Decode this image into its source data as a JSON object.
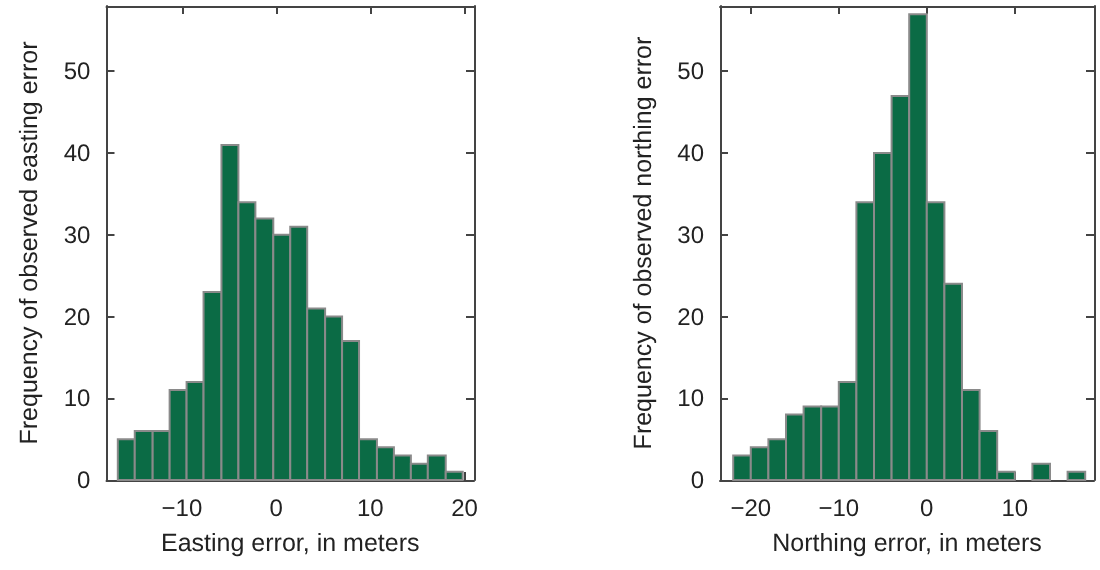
{
  "chart_data": [
    {
      "type": "histogram",
      "xlabel": "Easting error, in meters",
      "ylabel": "Frequency of observed easting error",
      "color": "#0b6b45",
      "bins": [
        -16.8,
        -15.0,
        -13.1,
        -11.3,
        -9.5,
        -7.7,
        -5.8,
        -4.0,
        -2.2,
        -0.3,
        1.5,
        3.3,
        5.2,
        7.0,
        8.8,
        10.7,
        12.5,
        14.3,
        16.1,
        18.0,
        19.8
      ],
      "values": [
        5,
        6,
        6,
        11,
        12,
        23,
        41,
        34,
        32,
        30,
        31,
        21,
        20,
        17,
        5,
        4,
        3,
        2,
        3,
        1
      ],
      "xlim": [
        -18,
        21
      ],
      "xticks": [
        -10,
        0,
        10,
        20
      ],
      "ylim": [
        0,
        58
      ],
      "yticks": [
        0,
        10,
        20,
        30,
        40,
        50
      ],
      "grid": false
    },
    {
      "type": "histogram",
      "xlabel": "Northing error, in meters",
      "ylabel": "Frequency of observed northing error",
      "color": "#0b6b45",
      "bins": [
        -22,
        -20,
        -18,
        -16,
        -14,
        -12,
        -10,
        -8,
        -6,
        -4,
        -2,
        0,
        2,
        4,
        6,
        8,
        10,
        12,
        14,
        16,
        18
      ],
      "values": [
        3,
        4,
        5,
        8,
        9,
        9,
        12,
        34,
        40,
        47,
        57,
        34,
        24,
        11,
        6,
        1,
        0,
        2,
        0,
        1
      ],
      "xlim": [
        -23.5,
        19
      ],
      "xticks": [
        -20,
        -10,
        0,
        10
      ],
      "ylim": [
        0,
        58
      ],
      "yticks": [
        0,
        10,
        20,
        30,
        40,
        50
      ],
      "grid": false
    }
  ]
}
